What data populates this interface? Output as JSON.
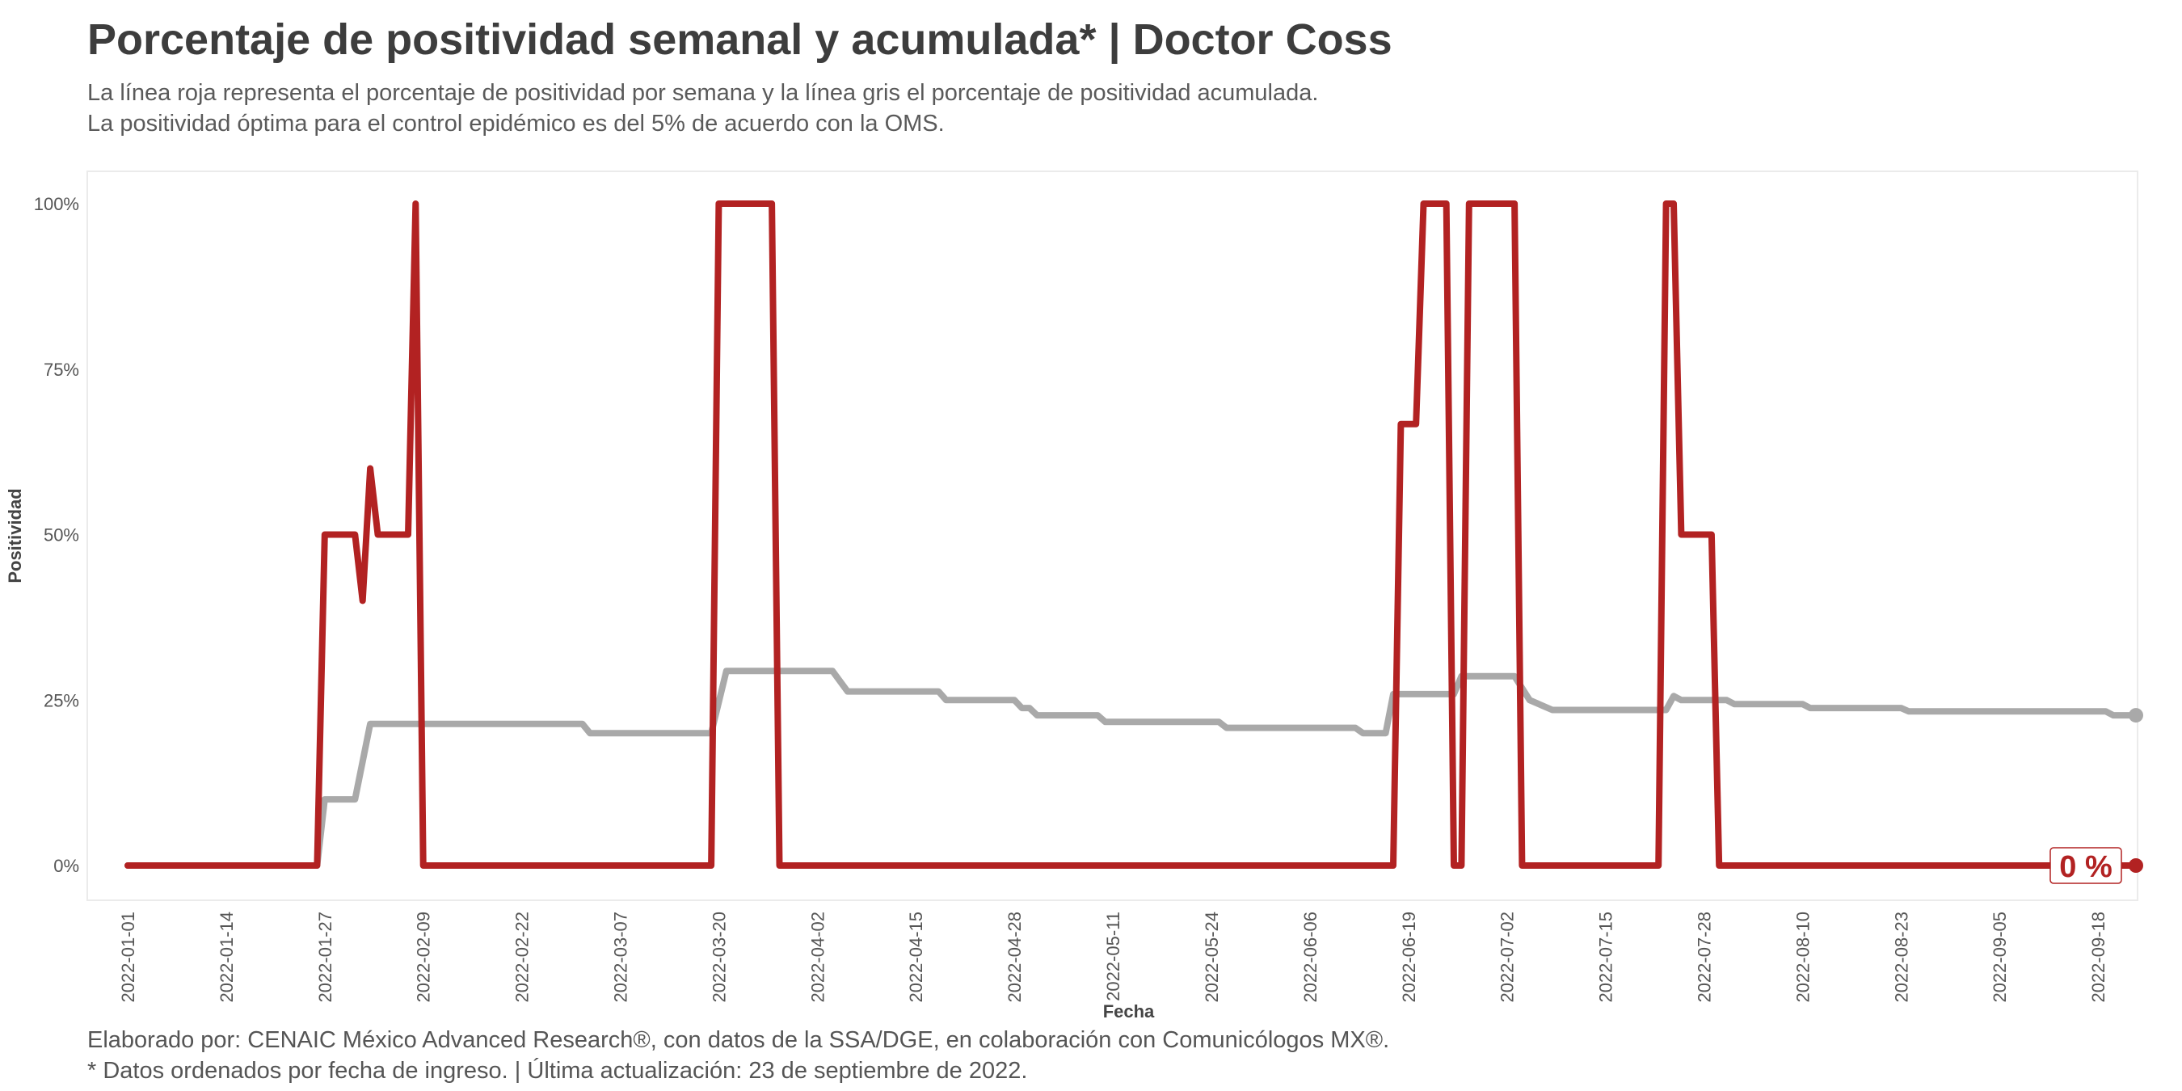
{
  "header": {
    "title": "Porcentaje de positividad semanal y acumulada* | Doctor Coss",
    "subtitle_line1": "La línea roja representa el porcentaje de positividad por semana y la línea gris el porcentaje de positividad acumulada.",
    "subtitle_line2": "La positividad óptima para el control epidémico es del 5% de acuerdo con la OMS."
  },
  "footer": {
    "caption_line1": "Elaborado por: CENAIC México Advanced Research®, con datos de la SSA/DGE, en colaboración con Comunicólogos MX®.",
    "caption_line2": "* Datos ordenados por fecha de ingreso. | Última actualización: 23 de septiembre de 2022."
  },
  "chart_data": {
    "type": "line",
    "xlabel": "Fecha",
    "ylabel": "Positividad",
    "xlim": [
      "2022-01-01",
      "2022-09-23"
    ],
    "ylim": [
      -0.05,
      1.05
    ],
    "x_ticks": [
      "2022-01-01",
      "2022-01-14",
      "2022-01-27",
      "2022-02-09",
      "2022-02-22",
      "2022-03-07",
      "2022-03-20",
      "2022-04-02",
      "2022-04-15",
      "2022-04-28",
      "2022-05-11",
      "2022-05-24",
      "2022-06-06",
      "2022-06-19",
      "2022-07-02",
      "2022-07-15",
      "2022-07-28",
      "2022-08-10",
      "2022-08-23",
      "2022-09-05",
      "2022-09-18"
    ],
    "y_ticks": [
      0,
      0.25,
      0.5,
      0.75,
      1.0
    ],
    "y_tick_labels": [
      "0%",
      "25%",
      "50%",
      "75%",
      "100%"
    ],
    "grid": false,
    "end_label": "0 %",
    "colors": {
      "weekly": "#b22222",
      "cumulative": "#a9a9a9",
      "label_border": "#b22222"
    },
    "series": [
      {
        "id": "weekly",
        "points": [
          [
            "2022-01-01",
            0
          ],
          [
            "2022-01-26",
            0
          ],
          [
            "2022-01-27",
            0.5
          ],
          [
            "2022-01-31",
            0.5
          ],
          [
            "2022-02-01",
            0.4
          ],
          [
            "2022-02-02",
            0.6
          ],
          [
            "2022-02-03",
            0.5
          ],
          [
            "2022-02-07",
            0.5
          ],
          [
            "2022-02-08",
            1.0
          ],
          [
            "2022-02-09",
            0
          ],
          [
            "2022-03-19",
            0
          ],
          [
            "2022-03-20",
            1.0
          ],
          [
            "2022-03-27",
            1.0
          ],
          [
            "2022-03-28",
            0
          ],
          [
            "2022-06-17",
            0
          ],
          [
            "2022-06-18",
            0.667
          ],
          [
            "2022-06-20",
            0.667
          ],
          [
            "2022-06-21",
            1.0
          ],
          [
            "2022-06-24",
            1.0
          ],
          [
            "2022-06-25",
            0
          ],
          [
            "2022-06-26",
            0
          ],
          [
            "2022-06-27",
            1.0
          ],
          [
            "2022-07-03",
            1.0
          ],
          [
            "2022-07-04",
            0
          ],
          [
            "2022-07-22",
            0
          ],
          [
            "2022-07-23",
            1.0
          ],
          [
            "2022-07-24",
            1.0
          ],
          [
            "2022-07-25",
            0.5
          ],
          [
            "2022-07-29",
            0.5
          ],
          [
            "2022-07-30",
            0
          ],
          [
            "2022-09-23",
            0
          ]
        ]
      },
      {
        "id": "cumulative",
        "points": [
          [
            "2022-01-01",
            0
          ],
          [
            "2022-01-26",
            0
          ],
          [
            "2022-01-27",
            0.1
          ],
          [
            "2022-01-31",
            0.1
          ],
          [
            "2022-02-02",
            0.214
          ],
          [
            "2022-03-02",
            0.214
          ],
          [
            "2022-03-03",
            0.2
          ],
          [
            "2022-03-19",
            0.2
          ],
          [
            "2022-03-21",
            0.294
          ],
          [
            "2022-04-04",
            0.294
          ],
          [
            "2022-04-06",
            0.263
          ],
          [
            "2022-04-18",
            0.263
          ],
          [
            "2022-04-19",
            0.25
          ],
          [
            "2022-04-28",
            0.25
          ],
          [
            "2022-04-29",
            0.238
          ],
          [
            "2022-04-30",
            0.238
          ],
          [
            "2022-05-01",
            0.227
          ],
          [
            "2022-05-09",
            0.227
          ],
          [
            "2022-05-10",
            0.217
          ],
          [
            "2022-05-25",
            0.217
          ],
          [
            "2022-05-26",
            0.208
          ],
          [
            "2022-06-12",
            0.208
          ],
          [
            "2022-06-13",
            0.2
          ],
          [
            "2022-06-16",
            0.2
          ],
          [
            "2022-06-17",
            0.259
          ],
          [
            "2022-06-25",
            0.259
          ],
          [
            "2022-06-26",
            0.286
          ],
          [
            "2022-07-03",
            0.286
          ],
          [
            "2022-07-05",
            0.25
          ],
          [
            "2022-07-08",
            0.235
          ],
          [
            "2022-07-23",
            0.235
          ],
          [
            "2022-07-24",
            0.256
          ],
          [
            "2022-07-25",
            0.25
          ],
          [
            "2022-07-31",
            0.25
          ],
          [
            "2022-08-01",
            0.244
          ],
          [
            "2022-08-10",
            0.244
          ],
          [
            "2022-08-11",
            0.238
          ],
          [
            "2022-08-23",
            0.238
          ],
          [
            "2022-08-24",
            0.233
          ],
          [
            "2022-09-19",
            0.233
          ],
          [
            "2022-09-20",
            0.227
          ],
          [
            "2022-09-23",
            0.227
          ]
        ]
      }
    ]
  }
}
